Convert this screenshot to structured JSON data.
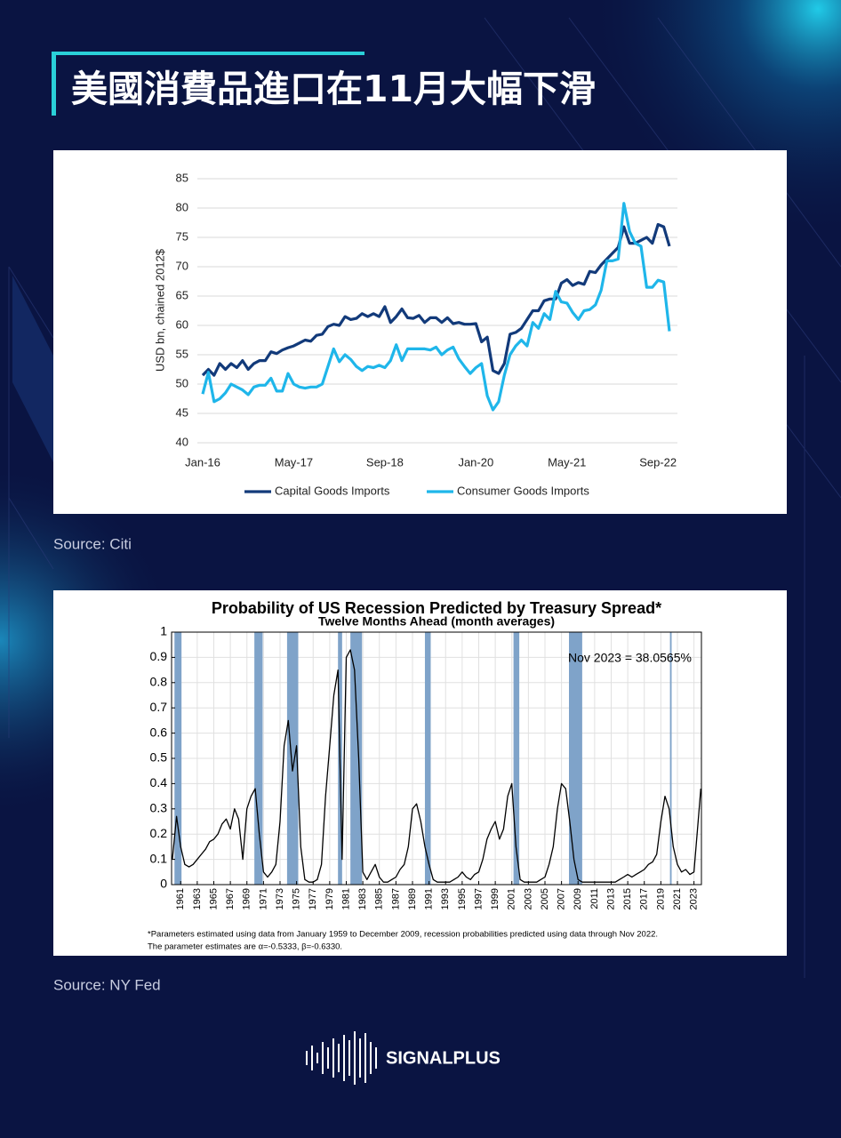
{
  "header": {
    "title": "美國消費品進口在11月大幅下滑"
  },
  "chart_data": [
    {
      "type": "line",
      "y_label": "USD bn, chained 2012$",
      "categories": [
        "Jan-16",
        null,
        null,
        null,
        null,
        null,
        null,
        null,
        null,
        null,
        null,
        null,
        null,
        null,
        null,
        null,
        "May-17",
        null,
        null,
        null,
        null,
        null,
        null,
        null,
        null,
        null,
        null,
        null,
        null,
        null,
        null,
        null,
        "Sep-18",
        null,
        null,
        null,
        null,
        null,
        null,
        null,
        null,
        null,
        null,
        null,
        null,
        null,
        null,
        null,
        "Jan-20",
        null,
        null,
        null,
        null,
        null,
        null,
        null,
        null,
        null,
        null,
        null,
        null,
        null,
        null,
        null,
        "May-21",
        null,
        null,
        null,
        null,
        null,
        null,
        null,
        null,
        null,
        null,
        null,
        null,
        null,
        null,
        null,
        "Sep-22",
        null,
        null
      ],
      "series": [
        {
          "name": "Capital Goods Imports",
          "color": "#123a7a",
          "values": [
            51.5,
            52.5,
            51.5,
            53.5,
            52.5,
            53.5,
            52.8,
            54,
            52.5,
            53.5,
            54,
            54,
            55.5,
            55.2,
            55.8,
            56.2,
            56.5,
            57,
            57.5,
            57.3,
            58.3,
            58.5,
            59.8,
            60.2,
            60,
            61.5,
            61,
            61.2,
            62,
            61.5,
            62,
            61.5,
            63.2,
            60.5,
            61.5,
            62.8,
            61.3,
            61.2,
            61.7,
            60.5,
            61.3,
            61.3,
            60.5,
            61.3,
            60.3,
            60.5,
            60.2,
            60.2,
            60.3,
            57.2,
            58,
            52.3,
            51.8,
            53.5,
            58.5,
            58.8,
            59.5,
            61,
            62.5,
            62.5,
            64.2,
            64.5,
            64.5,
            67.2,
            67.8,
            66.8,
            67.3,
            67,
            69.2,
            69,
            70.3,
            71.3,
            72.3,
            73.3,
            76.8,
            74,
            74,
            74.5,
            75,
            74,
            77.2,
            76.8,
            73.5
          ]
        },
        {
          "name": "Consumer Goods Imports",
          "color": "#1fb6ea",
          "values": [
            48.3,
            52,
            47,
            47.5,
            48.5,
            50,
            49.5,
            49,
            48.2,
            49.5,
            49.8,
            49.8,
            51,
            48.8,
            48.8,
            51.8,
            50,
            49.5,
            49.3,
            49.5,
            49.5,
            50,
            53,
            56,
            53.8,
            55,
            54.2,
            53,
            52.3,
            53,
            52.8,
            53.2,
            52.8,
            54,
            56.7,
            54,
            56,
            56,
            56,
            56,
            55.8,
            56.3,
            55,
            55.8,
            56.3,
            54.3,
            53,
            51.8,
            52.8,
            53.5,
            48,
            45.6,
            47,
            51.5,
            55,
            56.5,
            57.5,
            56.5,
            60.5,
            59.5,
            62,
            61,
            65.8,
            64,
            63.8,
            62.2,
            61,
            62.5,
            62.7,
            63.5,
            66,
            71,
            71,
            71.3,
            80.8,
            76,
            74,
            73.5,
            66.5,
            66.5,
            67.7,
            67.4,
            59
          ]
        }
      ],
      "ylim": [
        40,
        85
      ],
      "yticks": [
        40,
        45,
        50,
        55,
        60,
        65,
        70,
        75,
        80,
        85
      ],
      "grid": true,
      "legend": "bottom"
    },
    {
      "type": "line",
      "title": "Probability of US Recession Predicted by Treasury Spread*",
      "subtitle": "Twelve Months Ahead (month averages)",
      "annotation": "Nov 2023 = 38.0565%",
      "footnotes": [
        "*Parameters estimated using data from January 1959 to December 2009, recession probabilities predicted using data through Nov 2022.",
        "The parameter estimates are α=-0.5333, β=-0.6330."
      ],
      "color": "#000000",
      "x": [
        1960,
        1960.5,
        1961,
        1961.5,
        1962,
        1962.5,
        1963,
        1963.5,
        1964,
        1964.5,
        1965,
        1965.5,
        1966,
        1966.5,
        1967,
        1967.5,
        1968,
        1968.5,
        1969,
        1969.5,
        1970,
        1970.5,
        1971,
        1971.5,
        1972,
        1972.5,
        1973,
        1973.5,
        1974,
        1974.5,
        1975,
        1975.5,
        1976,
        1976.5,
        1977,
        1977.5,
        1978,
        1978.5,
        1979,
        1979.5,
        1980,
        1980.5,
        1981,
        1981.5,
        1982,
        1982.5,
        1983,
        1983.5,
        1984,
        1984.5,
        1985,
        1985.5,
        1986,
        1986.5,
        1987,
        1987.5,
        1988,
        1988.5,
        1989,
        1989.5,
        1990,
        1990.5,
        1991,
        1991.5,
        1992,
        1992.5,
        1993,
        1993.5,
        1994,
        1994.5,
        1995,
        1995.5,
        1996,
        1996.5,
        1997,
        1997.5,
        1998,
        1998.5,
        1999,
        1999.5,
        2000,
        2000.5,
        2001,
        2001.5,
        2002,
        2002.5,
        2003,
        2003.5,
        2004,
        2004.5,
        2005,
        2005.5,
        2006,
        2006.5,
        2007,
        2007.5,
        2008,
        2008.5,
        2009,
        2009.5,
        2010,
        2010.5,
        2011,
        2011.5,
        2012,
        2012.5,
        2013,
        2013.5,
        2014,
        2014.5,
        2015,
        2015.5,
        2016,
        2016.5,
        2017,
        2017.5,
        2018,
        2018.5,
        2019,
        2019.5,
        2020,
        2020.5,
        2021,
        2021.5,
        2022,
        2022.5,
        2023,
        2023.5,
        2023.83
      ],
      "values": [
        0.1,
        0.27,
        0.15,
        0.08,
        0.07,
        0.08,
        0.1,
        0.12,
        0.14,
        0.17,
        0.18,
        0.2,
        0.24,
        0.26,
        0.22,
        0.3,
        0.26,
        0.1,
        0.3,
        0.35,
        0.38,
        0.2,
        0.05,
        0.03,
        0.05,
        0.08,
        0.25,
        0.55,
        0.65,
        0.45,
        0.55,
        0.15,
        0.02,
        0.01,
        0.01,
        0.02,
        0.08,
        0.35,
        0.55,
        0.75,
        0.85,
        0.1,
        0.9,
        0.93,
        0.85,
        0.5,
        0.05,
        0.02,
        0.05,
        0.08,
        0.03,
        0.01,
        0.01,
        0.02,
        0.03,
        0.06,
        0.08,
        0.15,
        0.3,
        0.32,
        0.25,
        0.15,
        0.08,
        0.02,
        0.01,
        0.01,
        0.01,
        0.01,
        0.02,
        0.03,
        0.05,
        0.03,
        0.02,
        0.04,
        0.05,
        0.1,
        0.18,
        0.22,
        0.25,
        0.18,
        0.22,
        0.35,
        0.4,
        0.15,
        0.02,
        0.01,
        0.01,
        0.01,
        0.01,
        0.02,
        0.03,
        0.08,
        0.15,
        0.3,
        0.4,
        0.38,
        0.25,
        0.1,
        0.02,
        0.01,
        0.01,
        0.01,
        0.01,
        0.01,
        0.01,
        0.01,
        0.01,
        0.01,
        0.02,
        0.03,
        0.04,
        0.03,
        0.04,
        0.05,
        0.06,
        0.08,
        0.09,
        0.12,
        0.25,
        0.35,
        0.3,
        0.15,
        0.08,
        0.05,
        0.06,
        0.04,
        0.05,
        0.25,
        0.38
      ],
      "shaded_periods": [
        [
          1960.25,
          1961.1
        ],
        [
          1969.9,
          1970.9
        ],
        [
          1973.85,
          1975.2
        ],
        [
          1980.0,
          1980.5
        ],
        [
          1981.5,
          1982.9
        ],
        [
          1990.5,
          1991.2
        ],
        [
          2001.2,
          2001.9
        ],
        [
          2007.9,
          2009.5
        ],
        [
          2020.1,
          2020.3
        ]
      ],
      "shade_color": "#7fa3c9",
      "xlim": [
        1959.9,
        2023.9
      ],
      "xticks": [
        1961,
        1963,
        1965,
        1967,
        1969,
        1971,
        1973,
        1975,
        1977,
        1979,
        1981,
        1983,
        1985,
        1987,
        1989,
        1991,
        1993,
        1995,
        1997,
        1999,
        2001,
        2003,
        2005,
        2007,
        2009,
        2011,
        2013,
        2015,
        2017,
        2019,
        2021,
        2023
      ],
      "ylim": [
        0,
        1
      ],
      "yticks": [
        0,
        0.1,
        0.2,
        0.3,
        0.4,
        0.5,
        0.6,
        0.7,
        0.8,
        0.9,
        1
      ],
      "grid": true
    }
  ],
  "sources": [
    "Source: Citi",
    "Source: NY Fed"
  ],
  "brand": "SIGNALPLUS"
}
